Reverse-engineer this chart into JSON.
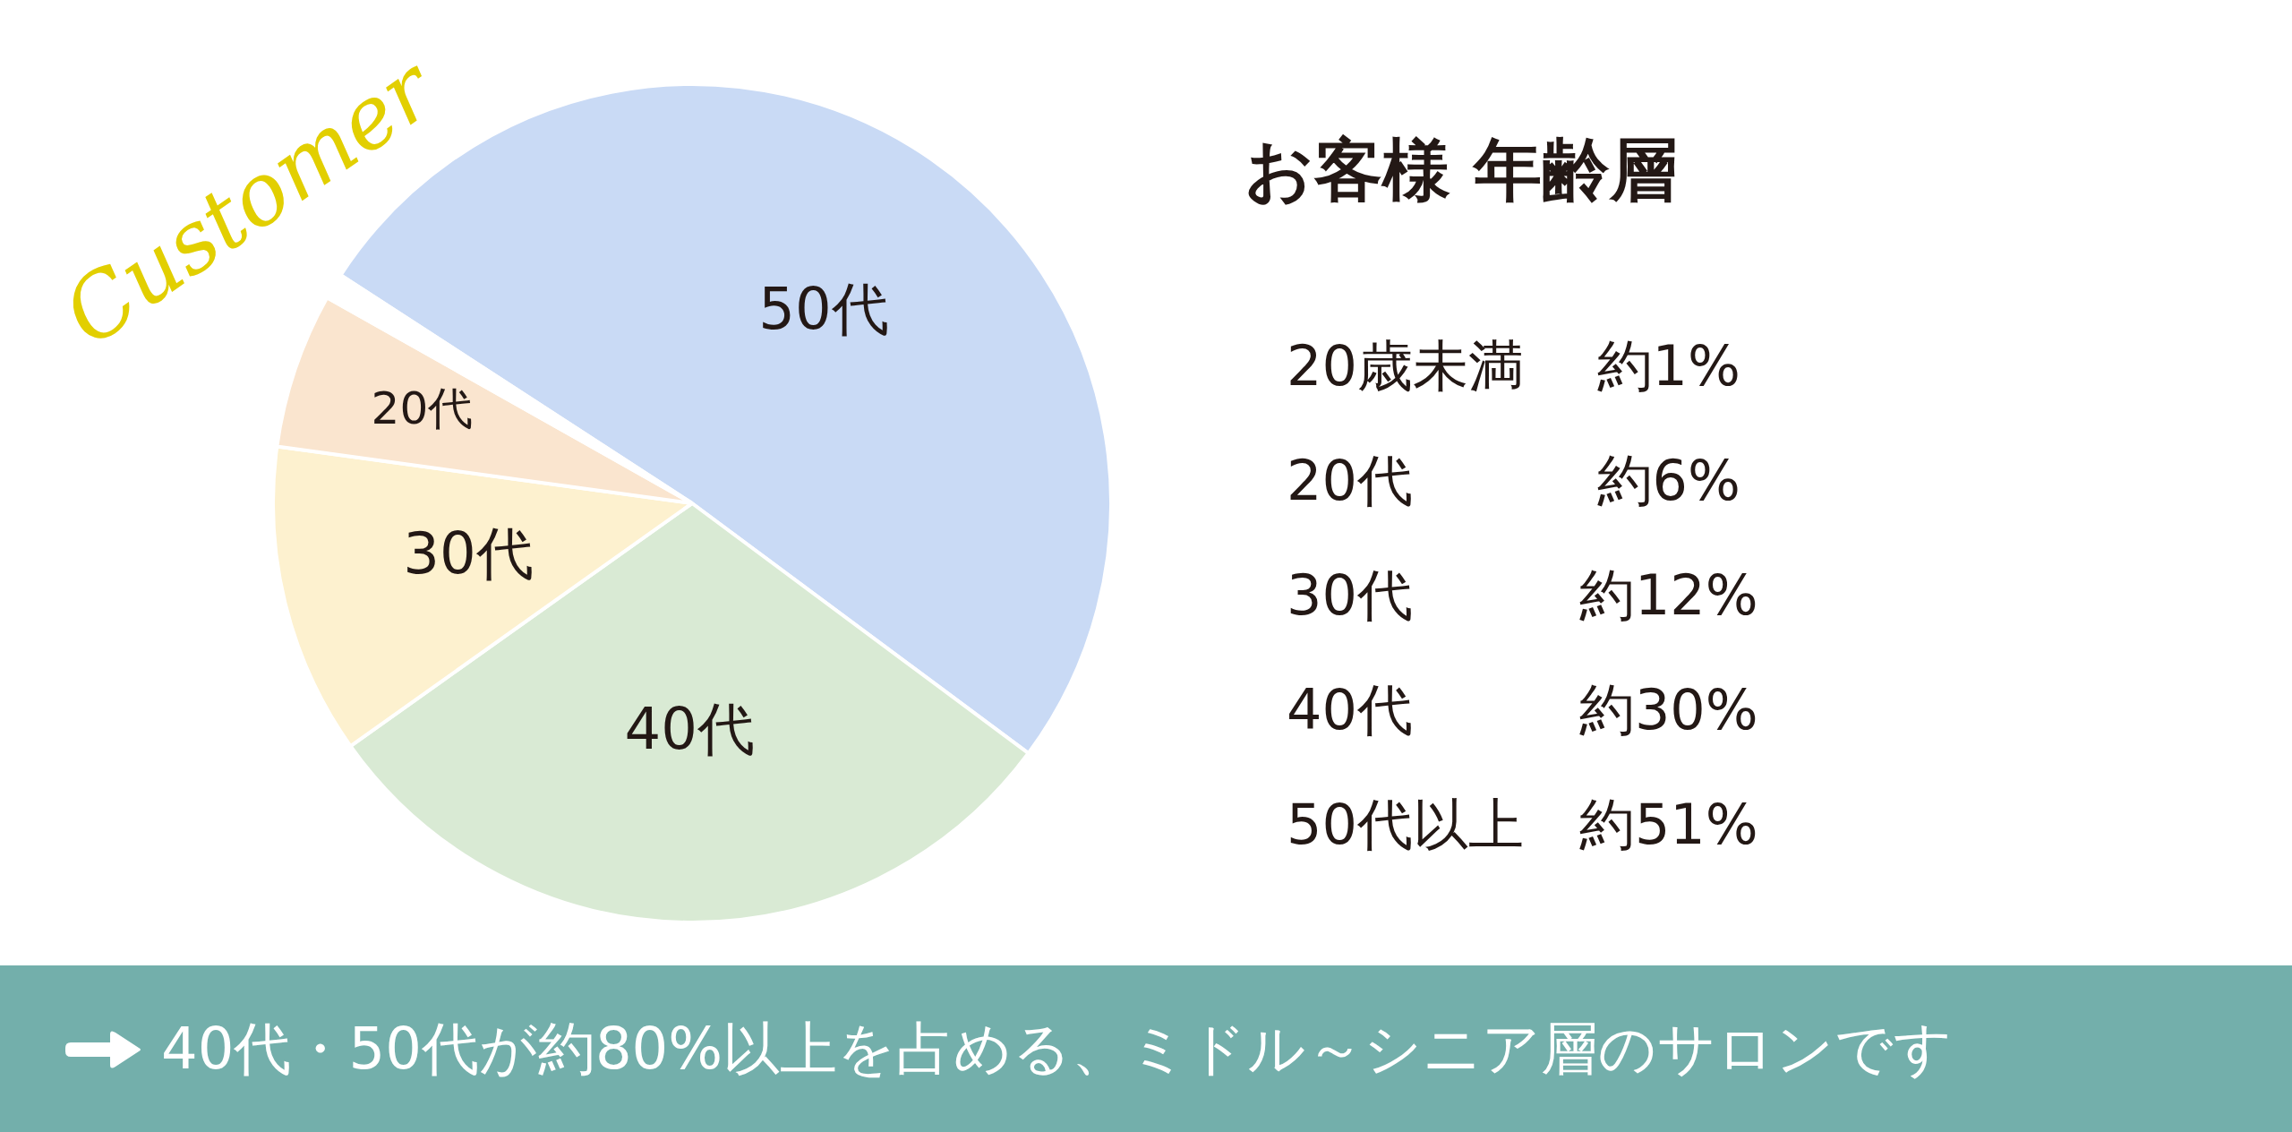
{
  "chart_data": [
    {
      "type": "pie",
      "categories": [
        null,
        "20代",
        "30代",
        "40代",
        "50代"
      ],
      "values": [
        1,
        6,
        12,
        30,
        51
      ],
      "colors": [
        "#ffffff",
        "#fae5cf",
        "#fdf1cf",
        "#d9ead4",
        "#c9daf5"
      ],
      "annotations": [
        "Customer",
        "40代・50代が約80%以上を占める、ミドル～シニア層のサロンです"
      ]
    },
    {
      "type": "other",
      "title": "お客様 年齢層",
      "annotations": [
        "20歳未満　 約1%",
        "20代　　　 約6%",
        "30代　　　約12%",
        "40代　　　約30%",
        "50代以上　約51%"
      ]
    }
  ]
}
